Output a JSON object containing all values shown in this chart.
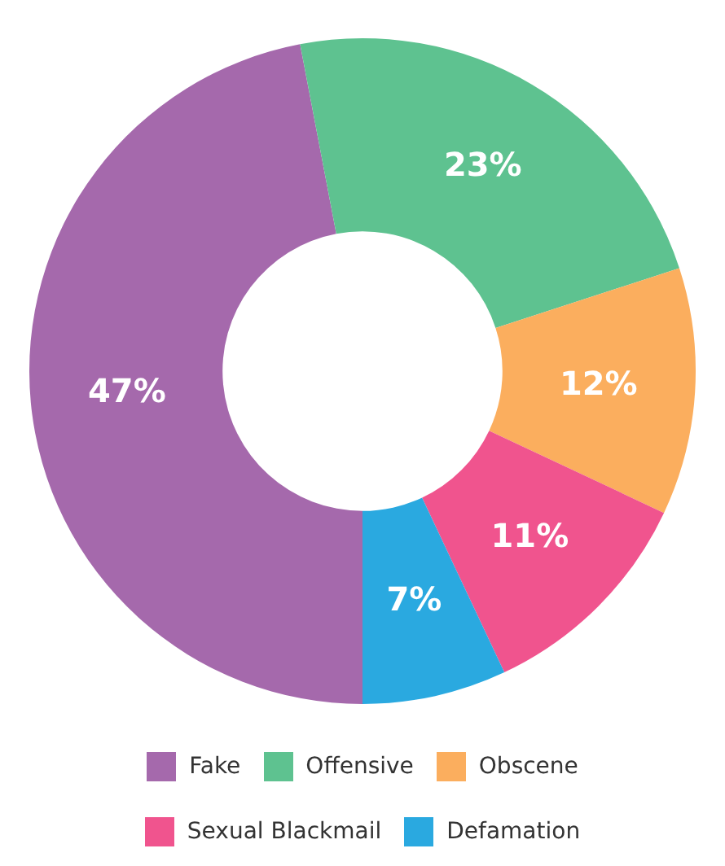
{
  "chart_data": {
    "type": "donut",
    "categories": [
      "Fake",
      "Offensive",
      "Obscene",
      "Sexual Blackmail",
      "Defamation"
    ],
    "values": [
      47,
      23,
      12,
      11,
      7
    ],
    "colors": [
      "#a569ac",
      "#5ec290",
      "#fbae5e",
      "#f0548e",
      "#2aa9e0"
    ],
    "value_labels": [
      "47%",
      "23%",
      "12%",
      "11%",
      "7%"
    ],
    "legend": "bottom"
  }
}
